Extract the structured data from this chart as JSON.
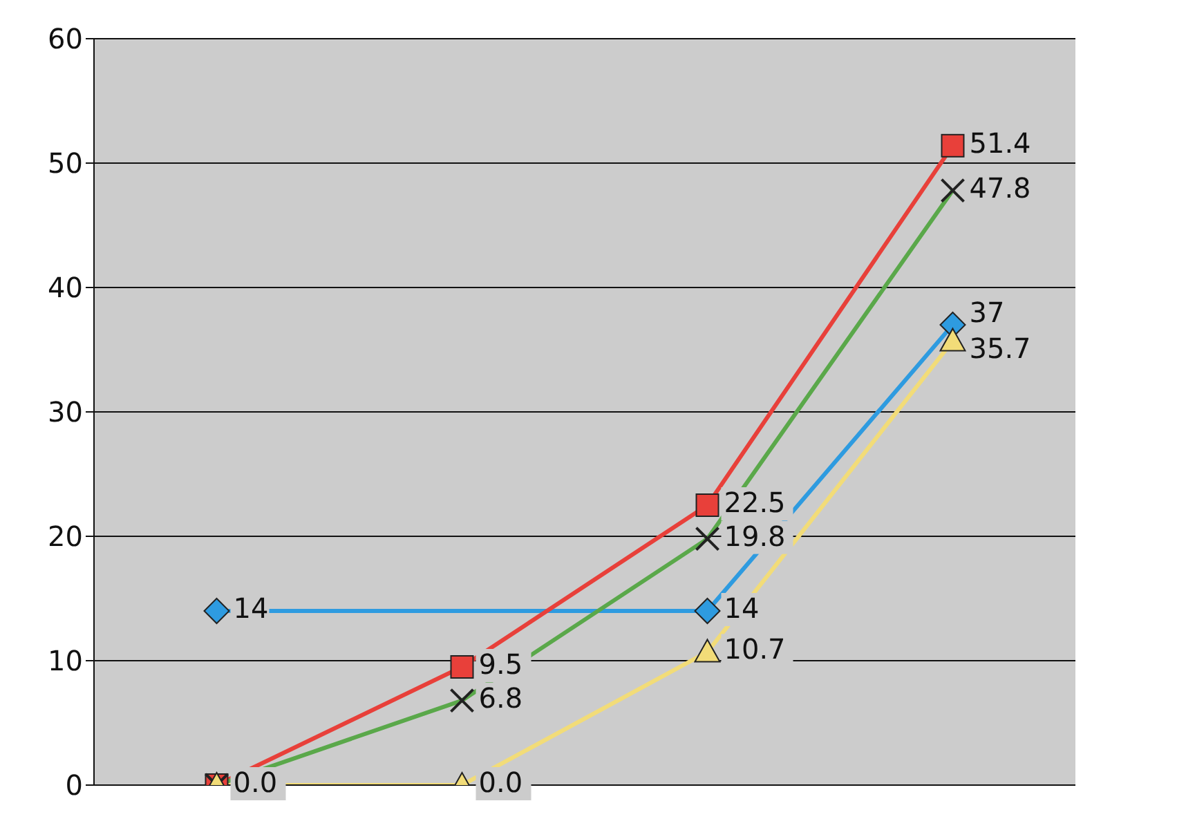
{
  "chart_data": {
    "type": "line",
    "categories": [
      null,
      null,
      null,
      null
    ],
    "series": [
      {
        "color": "#2e9be0",
        "marker": "diamond",
        "values": [
          14,
          null,
          14,
          37
        ],
        "value_labels": [
          "14",
          null,
          "14",
          "37"
        ]
      },
      {
        "color": "#e8403a",
        "marker": "square",
        "values": [
          0.0,
          9.5,
          22.5,
          51.4
        ],
        "value_labels": [
          "0.0",
          "9.5",
          "22.5",
          "51.4"
        ]
      },
      {
        "color": "#5aa84a",
        "marker": "cross",
        "values": [
          0,
          6.8,
          19.8,
          47.8
        ],
        "value_labels": [
          null,
          "6.8",
          "19.8",
          "47.8"
        ]
      },
      {
        "color": "#f2dc78",
        "marker": "triangle",
        "values": [
          0,
          0.0,
          10.7,
          35.7
        ],
        "value_labels": [
          null,
          "0.0",
          "10.7",
          "35.7"
        ]
      }
    ],
    "ylim": [
      0,
      60
    ],
    "yticks": [
      0,
      10,
      20,
      30,
      40,
      50,
      60
    ],
    "grid": "y",
    "tick_labels": "y",
    "line_style": "solid"
  }
}
